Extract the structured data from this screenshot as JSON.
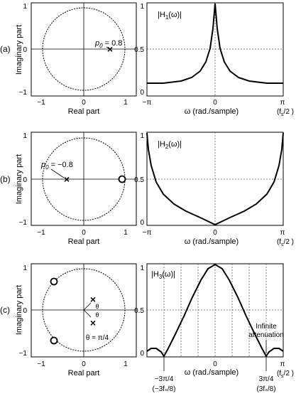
{
  "colors": {
    "ink": "#000000",
    "grid": "#555555",
    "background": "#ffffff"
  },
  "rows": [
    {
      "row_label": "(a)",
      "pz": {
        "ylabel": "Imaginary part",
        "xlabel": "Real part",
        "xticks": [
          "−1",
          "0",
          "1"
        ],
        "yticks": [
          "1",
          "0",
          "−1"
        ],
        "poles": [
          {
            "re": 0.8,
            "im": 0.0
          }
        ],
        "zeros": [],
        "annotation_main": "p",
        "annotation_sub": "0",
        "annotation_rest": " = 0.8"
      },
      "mag": {
        "title_main": "|H",
        "title_sub": "1",
        "title_rest": "(ω)|",
        "yticks": [
          "1",
          "0.5",
          "0"
        ],
        "xticks": [
          "−π",
          "0",
          "π"
        ],
        "xlabel": "ω (rad./sample)",
        "fs_label_main": "(f",
        "fs_label_sub": "s",
        "fs_label_rest": "/2 )"
      }
    },
    {
      "row_label": "(b)",
      "pz": {
        "ylabel": "Imaginary part",
        "xlabel": "Real part",
        "xticks": [
          "−1",
          "0",
          "1"
        ],
        "yticks": [
          "1",
          "0",
          "−1"
        ],
        "poles": [
          {
            "re": -0.8,
            "im": 0.0
          }
        ],
        "zeros": [
          {
            "re": 1.0,
            "im": 0.0
          }
        ],
        "annotation_main": "p",
        "annotation_sub": "0",
        "annotation_rest": " = −0.8"
      },
      "mag": {
        "title_main": "|H",
        "title_sub": "2",
        "title_rest": "(ω)|",
        "yticks": [
          "1",
          "0.5",
          "0"
        ],
        "xticks": [
          "−π",
          "0",
          "π"
        ],
        "xlabel": "ω (rad./sample)",
        "fs_label_main": "(f",
        "fs_label_sub": "s",
        "fs_label_rest": "/2 )"
      }
    },
    {
      "row_label": "(c)",
      "pz": {
        "ylabel": "Imaginary part",
        "xlabel": "Real part",
        "xticks": [
          "−1",
          "0",
          "1"
        ],
        "yticks": [
          "1",
          "0",
          "−1"
        ],
        "poles": [
          {
            "re": 0.25,
            "im": 0.25
          },
          {
            "re": 0.25,
            "im": -0.25
          }
        ],
        "zeros": [
          {
            "re": -0.707,
            "im": 0.707
          },
          {
            "re": -0.707,
            "im": -0.707
          }
        ],
        "theta_label": "θ",
        "theta_eq": "θ = π/4"
      },
      "mag": {
        "title_main": "|H",
        "title_sub": "3",
        "title_rest": "(ω)|",
        "yticks": [
          "1",
          "0.5",
          "0"
        ],
        "xticks": [
          "0"
        ],
        "xlabel": "ω (rad./sample)",
        "left_mark": "−3π/4",
        "left_mark_fs": "(−3fₛ/8)",
        "right_mark": "3π/4",
        "right_mark_fs": "(3fₛ/8)",
        "right_pi": "π",
        "fs_label_main": "(f",
        "fs_label_sub": "s",
        "fs_label_rest": "/2 )",
        "annotation_line1": "Infinite",
        "annotation_line2": "attenuation"
      }
    }
  ]
}
